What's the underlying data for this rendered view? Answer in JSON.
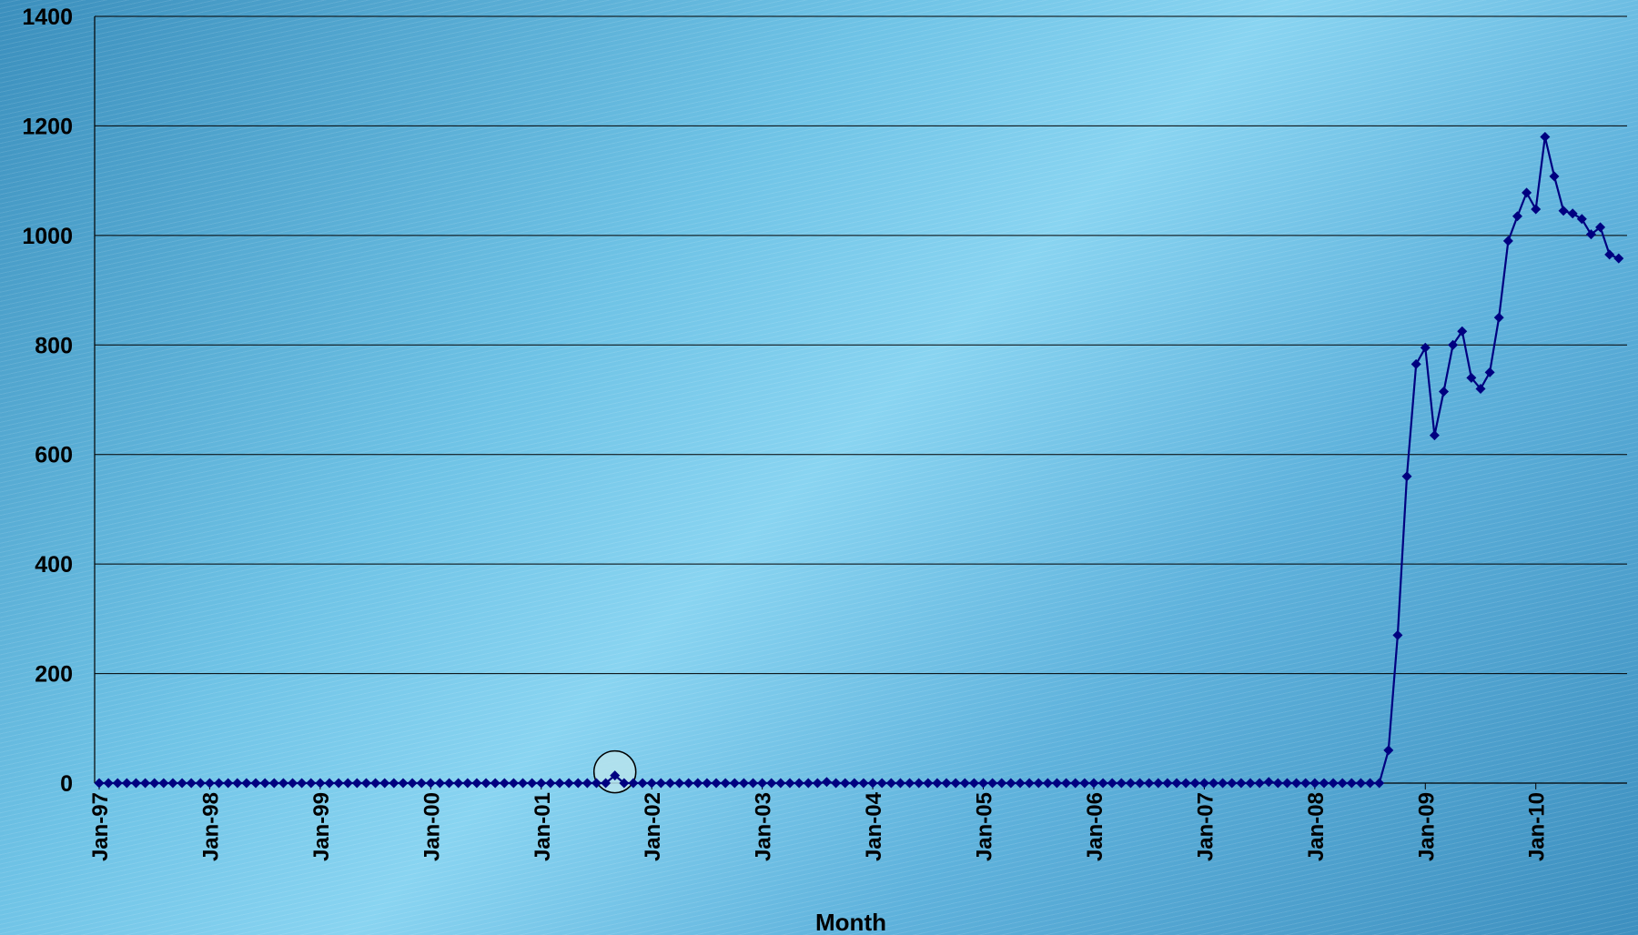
{
  "chart_data": {
    "type": "line",
    "title": "",
    "xlabel": "Month",
    "ylabel": "",
    "ylim": [
      0,
      1400
    ],
    "yticks": [
      0,
      200,
      400,
      600,
      800,
      1000,
      1200,
      1400
    ],
    "xtick_labels": [
      "Jan-97",
      "Jan-98",
      "Jan-99",
      "Jan-00",
      "Jan-01",
      "Jan-02",
      "Jan-03",
      "Jan-04",
      "Jan-05",
      "Jan-06",
      "Jan-07",
      "Jan-08",
      "Jan-09",
      "Jan-10"
    ],
    "x_start": "Jan-97",
    "x_unit": "month",
    "grid": "horizontal",
    "legend": "none",
    "highlight_circle_at": "Sep-01",
    "colors": {
      "line": "#000080",
      "marker": "#000080",
      "grid": "#000000"
    },
    "series": [
      {
        "marker": "diamond",
        "values": [
          0,
          0,
          0,
          0,
          0,
          0,
          0,
          0,
          0,
          0,
          0,
          0,
          0,
          0,
          0,
          0,
          0,
          0,
          0,
          0,
          0,
          0,
          0,
          0,
          0,
          0,
          0,
          0,
          0,
          0,
          0,
          0,
          0,
          0,
          0,
          0,
          0,
          0,
          0,
          0,
          0,
          0,
          0,
          0,
          0,
          0,
          0,
          0,
          0,
          0,
          0,
          0,
          0,
          0,
          0,
          0,
          14,
          0,
          0,
          0,
          0,
          0,
          0,
          0,
          0,
          0,
          0,
          0,
          0,
          0,
          0,
          0,
          0,
          0,
          0,
          0,
          0,
          0,
          0,
          2,
          0,
          0,
          0,
          0,
          0,
          0,
          0,
          0,
          0,
          0,
          0,
          0,
          0,
          0,
          0,
          0,
          0,
          0,
          0,
          0,
          0,
          0,
          0,
          0,
          0,
          0,
          0,
          0,
          0,
          0,
          0,
          0,
          0,
          0,
          0,
          0,
          0,
          0,
          0,
          0,
          0,
          0,
          0,
          0,
          0,
          0,
          0,
          2,
          0,
          0,
          0,
          0,
          0,
          0,
          0,
          0,
          0,
          0,
          0,
          0,
          60,
          270,
          560,
          765,
          795,
          635,
          715,
          800,
          825,
          740,
          720,
          750,
          850,
          990,
          1035,
          1078,
          1048,
          1180,
          1108,
          1045,
          1040,
          1030,
          1002,
          1015,
          965,
          958
        ]
      }
    ]
  }
}
